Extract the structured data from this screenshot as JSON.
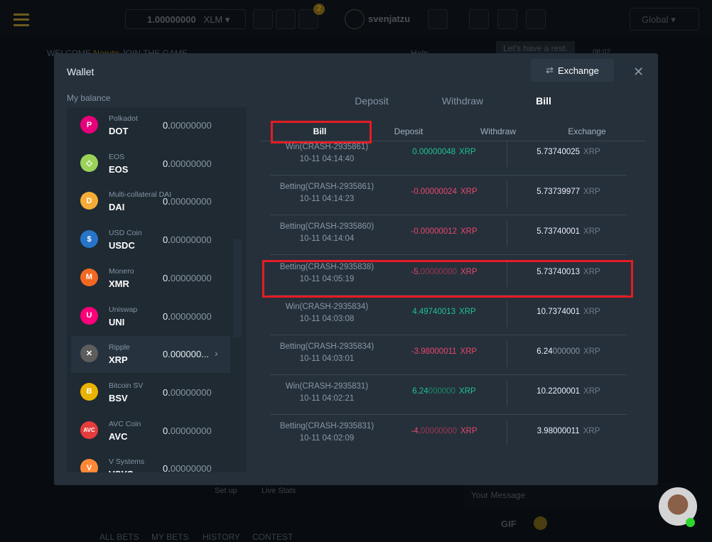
{
  "topbar": {
    "balance": "1.00000000",
    "currency": "XLM",
    "mail_badge": "2",
    "username": "svenjatzu",
    "region": "Global"
  },
  "background": {
    "welcome": "WELCOME",
    "user": "Naruto",
    "join": "JOIN THE GAME",
    "help": "Help",
    "chat_msg": "Let's have a rest.",
    "chat_time": "08:02",
    "setup": "Set up",
    "live_stats": "Live Stats",
    "message_placeholder": "Your Message",
    "gif": "GIF",
    "tabs": [
      "ALL BETS",
      "MY BETS",
      "HISTORY",
      "CONTEST"
    ]
  },
  "wallet": {
    "title": "Wallet",
    "exchange_label": "Exchange",
    "my_balance": "My balance",
    "coins": [
      {
        "name": "Polkadot",
        "symbol": "DOT",
        "main": "0.",
        "dim": "00000000",
        "color": "#e6007a",
        "icon": "polkadot-icon",
        "glyph": "P"
      },
      {
        "name": "EOS",
        "symbol": "EOS",
        "main": "0.",
        "dim": "00000000",
        "color": "#9bd35a",
        "icon": "eos-icon",
        "glyph": "◇"
      },
      {
        "name": "Multi-collateral DAI",
        "symbol": "DAI",
        "main": "0.",
        "dim": "00000000",
        "color": "#f5ac37",
        "icon": "dai-icon",
        "glyph": "D"
      },
      {
        "name": "USD Coin",
        "symbol": "USDC",
        "main": "0.",
        "dim": "00000000",
        "color": "#2775ca",
        "icon": "usdc-icon",
        "glyph": "$"
      },
      {
        "name": "Monero",
        "symbol": "XMR",
        "main": "0.",
        "dim": "00000000",
        "color": "#f26822",
        "icon": "monero-icon",
        "glyph": "M"
      },
      {
        "name": "Uniswap",
        "symbol": "UNI",
        "main": "0.",
        "dim": "00000000",
        "color": "#ff007a",
        "icon": "uniswap-icon",
        "glyph": "U"
      },
      {
        "name": "Ripple",
        "symbol": "XRP",
        "main": "0.000000...",
        "dim": "",
        "color": "#5d5d5d",
        "icon": "ripple-icon",
        "glyph": "✕",
        "selected": true
      },
      {
        "name": "Bitcoin SV",
        "symbol": "BSV",
        "main": "0.",
        "dim": "00000000",
        "color": "#eab300",
        "icon": "bitcoin-sv-icon",
        "glyph": "B"
      },
      {
        "name": "AVC Coin",
        "symbol": "AVC",
        "main": "0.",
        "dim": "00000000",
        "color": "#e53c3c",
        "icon": "avc-icon",
        "glyph": "AVC"
      },
      {
        "name": "V Systems",
        "symbol": "VSYS",
        "main": "0.",
        "dim": "00000000",
        "color": "#ff8836",
        "icon": "vsystems-icon",
        "glyph": "V"
      }
    ],
    "tabs": [
      {
        "label": "Deposit"
      },
      {
        "label": "Withdraw"
      },
      {
        "label": "Bill",
        "active": true
      }
    ],
    "subtabs": [
      {
        "label": "Bill",
        "active": true
      },
      {
        "label": "Deposit"
      },
      {
        "label": "Withdraw"
      },
      {
        "label": "Exchange"
      }
    ],
    "bills": [
      {
        "desc": "Win(CRASH-2935861)",
        "time": "10-11 04:14:40",
        "type": "pos",
        "amt": "0.00000048",
        "amt_dim": "",
        "bal": "5.73740025",
        "bal_dim": "",
        "unit": "XRP"
      },
      {
        "desc": "Betting(CRASH-2935861)",
        "time": "10-11 04:14:23",
        "type": "neg",
        "amt": "-0.00000024",
        "amt_dim": "",
        "bal": "5.73739977",
        "bal_dim": "",
        "unit": "XRP"
      },
      {
        "desc": "Betting(CRASH-2935860)",
        "time": "10-11 04:14:04",
        "type": "neg",
        "amt": "-0.00000012",
        "amt_dim": "",
        "bal": "5.73740001",
        "bal_dim": "",
        "unit": "XRP"
      },
      {
        "desc": "Betting(CRASH-2935838)",
        "time": "10-11 04:05:19",
        "type": "neg",
        "amt": "-5.",
        "amt_dim": "00000000",
        "bal": "5.73740013",
        "bal_dim": "",
        "unit": "XRP",
        "highlight": true
      },
      {
        "desc": "Win(CRASH-2935834)",
        "time": "10-11 04:03:08",
        "type": "pos",
        "amt": "4.49740013",
        "amt_dim": "",
        "bal": "10.7374001",
        "bal_dim": "",
        "unit": "XRP"
      },
      {
        "desc": "Betting(CRASH-2935834)",
        "time": "10-11 04:03:01",
        "type": "neg",
        "amt": "-3.98000011",
        "amt_dim": "",
        "bal": "6.24",
        "bal_dim": "000000",
        "unit": "XRP"
      },
      {
        "desc": "Win(CRASH-2935831)",
        "time": "10-11 04:02:21",
        "type": "pos",
        "amt": "6.24",
        "amt_dim": "000000",
        "bal": "10.2200001",
        "bal_dim": "",
        "unit": "XRP"
      },
      {
        "desc": "Betting(CRASH-2935831)",
        "time": "10-11 04:02:09",
        "type": "neg",
        "amt": "-4.",
        "amt_dim": "00000000",
        "bal": "3.98000011",
        "bal_dim": "",
        "unit": "XRP"
      }
    ]
  },
  "colors": {
    "positive": "#21c28e",
    "negative": "#e9476a",
    "highlight": "#e51c23"
  }
}
